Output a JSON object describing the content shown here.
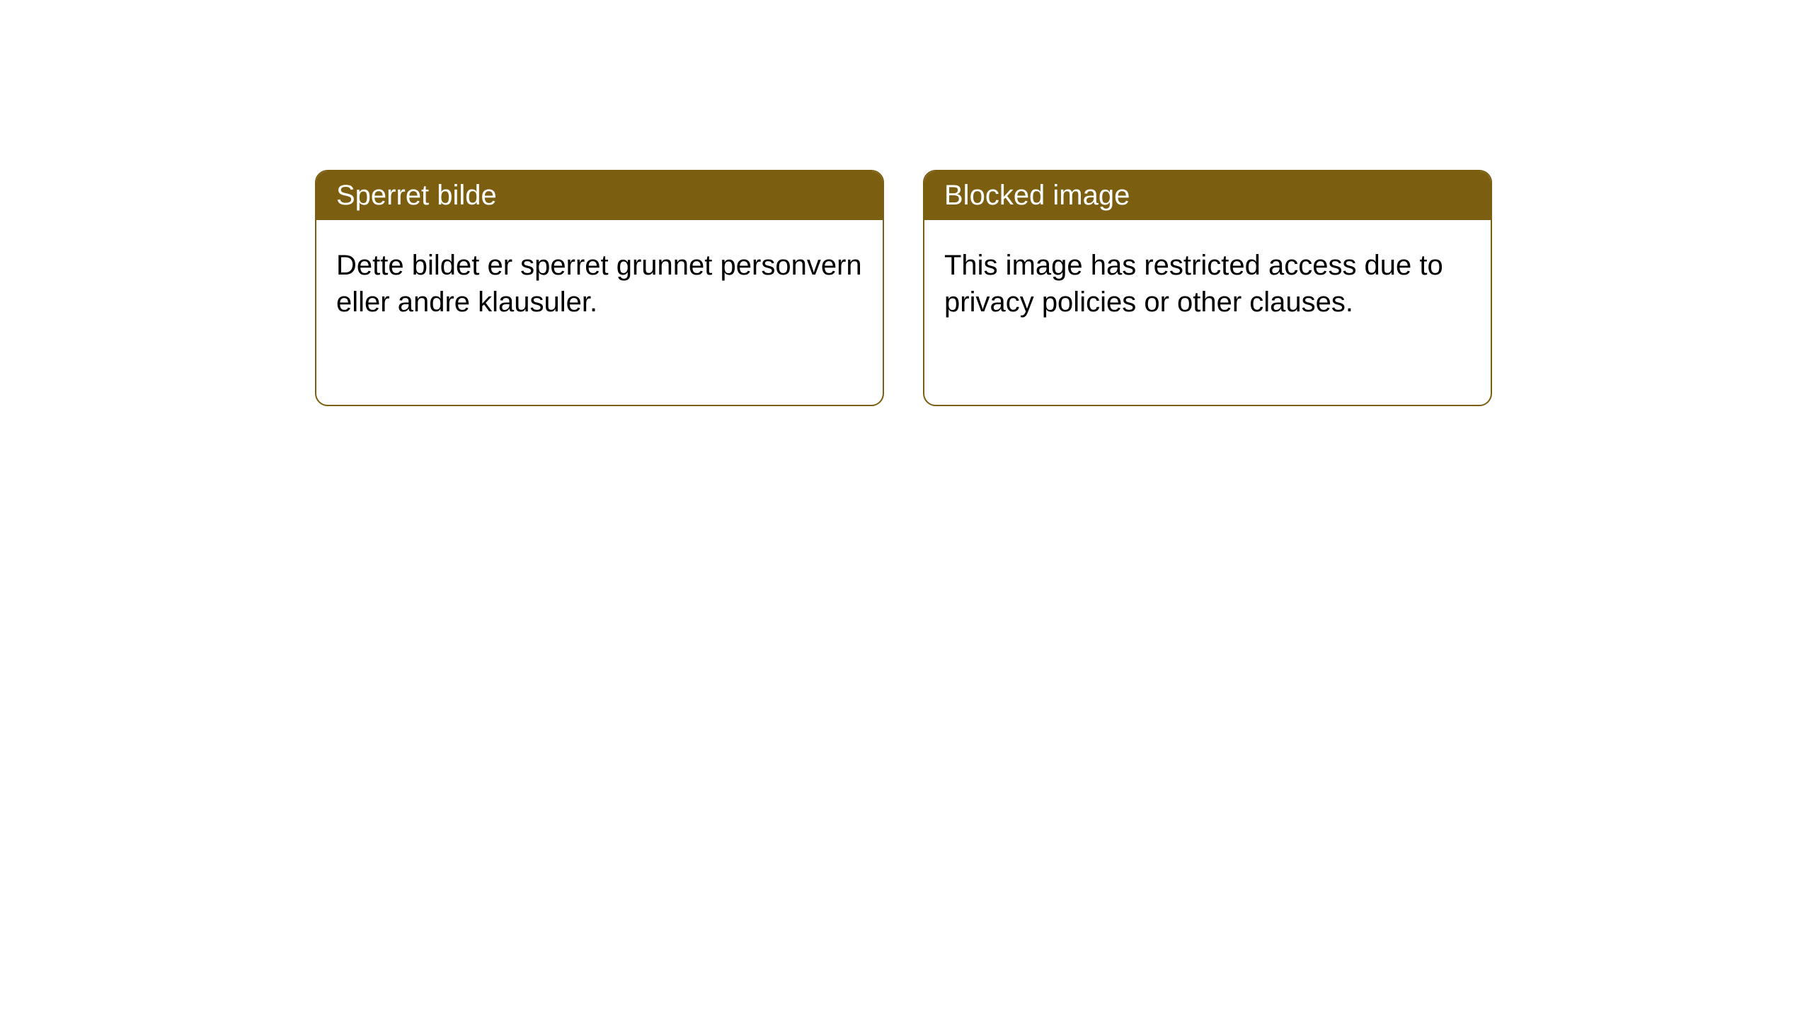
{
  "notices": {
    "left": {
      "title": "Sperret bilde",
      "body": "Dette bildet er sperret grunnet personvern eller andre klausuler."
    },
    "right": {
      "title": "Blocked image",
      "body": "This image has restricted access due to privacy policies or other clauses."
    }
  },
  "styling": {
    "header_bg_color": "#7c5e11",
    "header_text_color": "#ffffff",
    "border_color": "#7c5e11",
    "body_bg_color": "#ffffff",
    "body_text_color": "#000000",
    "border_radius": 18,
    "title_fontsize": 40,
    "body_fontsize": 40
  }
}
